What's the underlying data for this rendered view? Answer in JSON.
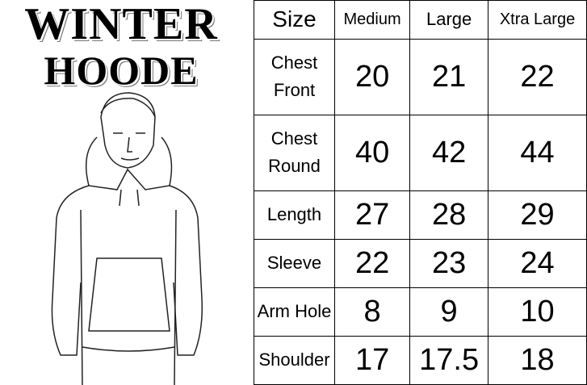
{
  "title": {
    "line1": "WINTER",
    "line2": "HOODE"
  },
  "table": {
    "headers": [
      "Size",
      "Medium",
      "Large",
      "Xtra Large"
    ],
    "rows": [
      {
        "label": "Chest Front",
        "values": [
          "20",
          "21",
          "22"
        ]
      },
      {
        "label": "Chest Round",
        "values": [
          "40",
          "42",
          "44"
        ]
      },
      {
        "label": "Length",
        "values": [
          "27",
          "28",
          "29"
        ]
      },
      {
        "label": "Sleeve",
        "values": [
          "22",
          "23",
          "24"
        ]
      },
      {
        "label": "Arm Hole",
        "values": [
          "8",
          "9",
          "10"
        ]
      },
      {
        "label": "Shoulder",
        "values": [
          "17",
          "17.5",
          "18"
        ]
      }
    ]
  }
}
